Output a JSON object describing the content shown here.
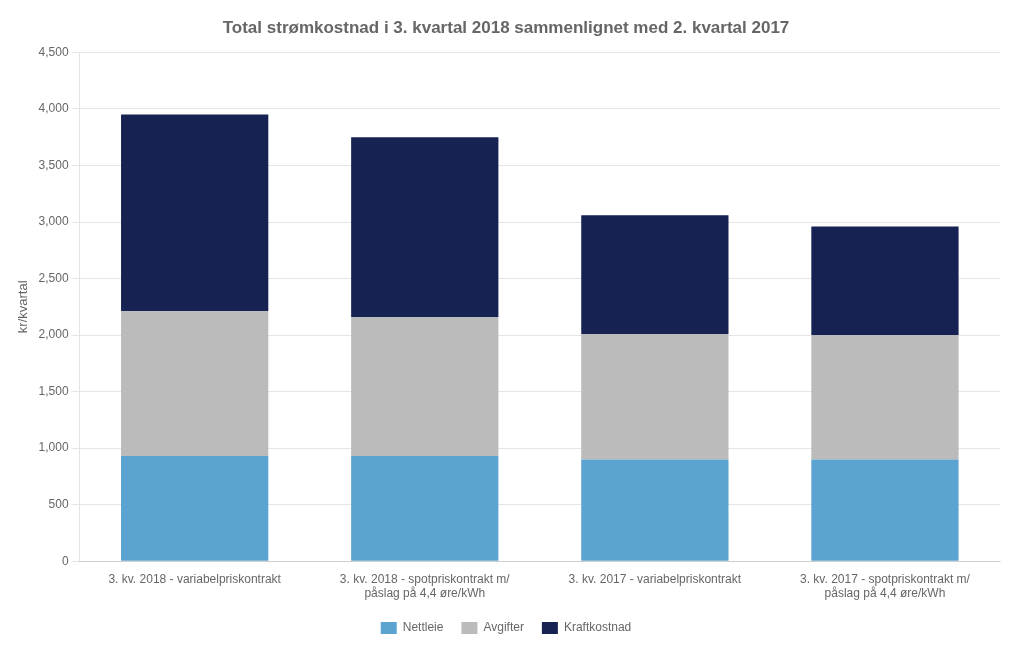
{
  "chart_data": {
    "type": "bar",
    "title": "Total strømkostnad i 3. kvartal 2018 sammenlignet med 2. kvartal 2017",
    "ylabel": "kr/kvartal",
    "categories": [
      "3. kv. 2018 - variabelpriskontrakt",
      "3. kv. 2018 - spotpriskontrakt m/\npåslag på 4,4 øre/kWh",
      "3. kv. 2017 - variabelpriskontrakt",
      "3. kv. 2017 - spotpriskontrakt m/\npåslag på 4,4 øre/kWh"
    ],
    "series": [
      {
        "name": "Nettleie",
        "color": "#5BA3D0",
        "values": [
          930,
          930,
          900,
          900
        ]
      },
      {
        "name": "Avgifter",
        "color": "#BBBBBB",
        "values": [
          1280,
          1230,
          1110,
          1100
        ]
      },
      {
        "name": "Kraftkostnad",
        "color": "#162252",
        "values": [
          1740,
          1590,
          1050,
          960
        ]
      }
    ],
    "stacked": true,
    "ylim": [
      0,
      4500
    ],
    "yticks": [
      0,
      500,
      1000,
      1500,
      2000,
      2500,
      3000,
      3500,
      4000,
      4500
    ],
    "grid": true,
    "legend": "bottom"
  }
}
